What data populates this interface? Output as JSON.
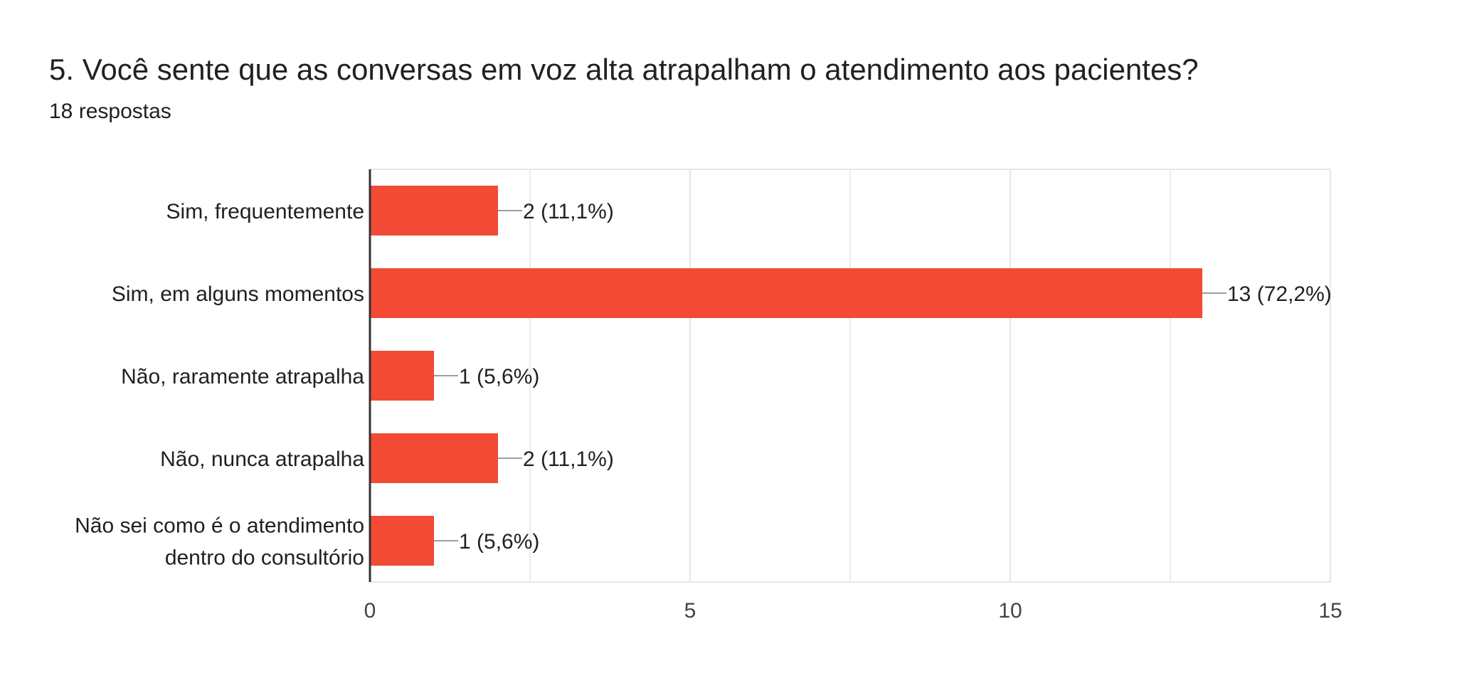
{
  "question": {
    "title": "5.  Você sente que as conversas em voz alta atrapalham o atendimento aos pacientes?",
    "responses": "18 respostas"
  },
  "chart_data": {
    "type": "bar",
    "orientation": "horizontal",
    "categories": [
      [
        "Sim, frequentemente"
      ],
      [
        "Sim, em alguns momentos"
      ],
      [
        "Não, raramente atrapalha"
      ],
      [
        "Não, nunca atrapalha"
      ],
      [
        "Não sei como é o atendimento",
        "dentro do consultório"
      ]
    ],
    "values": [
      2,
      13,
      1,
      2,
      1
    ],
    "data_labels": [
      "2 (11,1%)",
      "13 (72,2%)",
      "1 (5,6%)",
      "2 (11,1%)",
      "1 (5,6%)"
    ],
    "xlim": [
      0,
      15
    ],
    "xticks": [
      0,
      5,
      10,
      15
    ],
    "grid": true,
    "colors": {
      "bar": "#f24a35",
      "grid": "#e6e6e6",
      "axis": "#333333",
      "leader": "#9e9e9e"
    }
  }
}
